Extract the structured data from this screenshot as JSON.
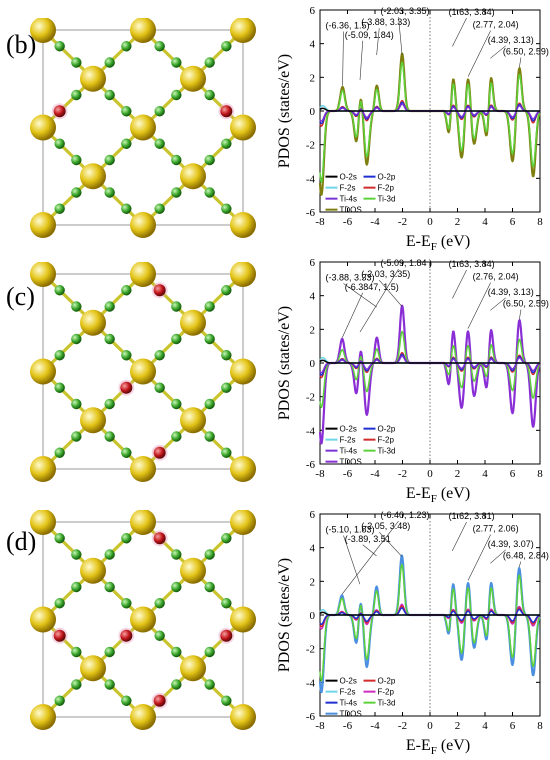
{
  "colors": {
    "ti_atom": "#e3c417",
    "o_atom": "#c0141a",
    "f_atom": "#3aa52b",
    "bond": "#c9c32d",
    "cell": "#999999"
  },
  "structures": [
    {
      "letter": "(b)",
      "o_sites": [
        [
          1,
          4
        ],
        [
          3,
          0
        ],
        [
          4,
          5
        ],
        [
          2,
          1
        ],
        [
          5,
          2
        ]
      ]
    },
    {
      "letter": "(c)",
      "o_sites": [
        [
          2,
          3
        ],
        [
          3,
          2
        ],
        [
          4,
          1
        ],
        [
          1,
          4
        ],
        [
          0,
          3
        ]
      ]
    },
    {
      "letter": "(d)",
      "o_sites": [
        [
          0,
          5
        ],
        [
          5,
          0
        ],
        [
          3,
          2
        ],
        [
          2,
          3
        ]
      ]
    }
  ],
  "chart_data": [
    {
      "type": "line",
      "panel": "(b)",
      "xlabel": "E-E_F (eV)",
      "ylabel": "PDOS (states/eV)",
      "xlim": [
        -8,
        8
      ],
      "ylim": [
        -6,
        6
      ],
      "xticks": [
        -8,
        -6,
        -4,
        -2,
        0,
        2,
        4,
        6,
        8
      ],
      "yticks": [
        -6,
        -4,
        -2,
        0,
        2,
        4,
        6
      ],
      "legend_position": "lower-left",
      "legend_columns": 2,
      "series": [
        {
          "name": "O-2s",
          "color": "#000000",
          "scale": 0.02
        },
        {
          "name": "O-2p",
          "color": "#1f2fd1",
          "scale": 0.15
        },
        {
          "name": "F-2s",
          "color": "#6cd6e8",
          "scale": 0.04
        },
        {
          "name": "F-2p",
          "color": "#d12b2b",
          "scale": 0.18
        },
        {
          "name": "Ti-4s",
          "color": "#7a33d6",
          "scale": 0.12
        },
        {
          "name": "Ti-3d",
          "color": "#5cd13a",
          "scale": 0.85
        },
        {
          "name": "TDOS",
          "color": "#7f7f10",
          "scale": 1.0
        }
      ],
      "peaks_up": [
        [
          -6.36,
          1.5
        ],
        [
          -5.09,
          1.84
        ],
        [
          -3.88,
          3.33
        ],
        [
          -2.03,
          3.35
        ],
        [
          1.63,
          3.84
        ],
        [
          2.77,
          2.04
        ],
        [
          4.39,
          3.13
        ],
        [
          6.5,
          2.59
        ]
      ],
      "peaks_down": [
        [
          -7.9,
          -5.0
        ],
        [
          -5.3,
          -2.4
        ],
        [
          -4.6,
          -3.2
        ],
        [
          -3.9,
          -1.8
        ],
        [
          1.5,
          -3.0
        ],
        [
          2.3,
          -2.8
        ],
        [
          3.2,
          -2.0
        ],
        [
          4.2,
          -2.4
        ],
        [
          6.0,
          -3.0
        ],
        [
          7.5,
          -3.9
        ]
      ],
      "annotations": [
        {
          "label": "(-6.36, 1.5)",
          "x": -6.36,
          "y": 1.5
        },
        {
          "label": "(-5.09, 1.84)",
          "x": -5.09,
          "y": 1.84
        },
        {
          "label": "(-3.88, 3.33)",
          "x": -3.88,
          "y": 3.33
        },
        {
          "label": "(-2.03, 3.35)",
          "x": -2.03,
          "y": 3.35
        },
        {
          "label": "(1.63, 3.84)",
          "x": 1.63,
          "y": 3.84
        },
        {
          "label": "(2.77, 2.04)",
          "x": 2.77,
          "y": 2.04
        },
        {
          "label": "(4.39, 3.13)",
          "x": 4.39,
          "y": 3.13
        },
        {
          "label": "(6.50, 2.59)",
          "x": 6.5,
          "y": 2.59
        }
      ]
    },
    {
      "type": "line",
      "panel": "(c)",
      "xlabel": "E-E_F (eV)",
      "ylabel": "PDOS (states/eV)",
      "xlim": [
        -8,
        8
      ],
      "ylim": [
        -6,
        6
      ],
      "xticks": [
        -8,
        -6,
        -4,
        -2,
        0,
        2,
        4,
        6,
        8
      ],
      "yticks": [
        -6,
        -4,
        -2,
        0,
        2,
        4,
        6
      ],
      "legend_position": "lower-left",
      "legend_columns": 2,
      "series": [
        {
          "name": "O-2s",
          "color": "#000000",
          "scale": 0.02
        },
        {
          "name": "O-2p",
          "color": "#1f2fd1",
          "scale": 0.15
        },
        {
          "name": "F-2s",
          "color": "#6cd6e8",
          "scale": 0.04
        },
        {
          "name": "F-2p",
          "color": "#d12b2b",
          "scale": 0.18
        },
        {
          "name": "Ti-4s",
          "color": "#7a33d6",
          "scale": 0.12
        },
        {
          "name": "Ti-3d",
          "color": "#5cd13a",
          "scale": 0.55
        },
        {
          "name": "TDOS",
          "color": "#8a2fd6",
          "scale": 1.0
        }
      ],
      "peaks_up": [
        [
          -6.3847,
          1.5
        ],
        [
          -5.09,
          1.84
        ],
        [
          -3.88,
          3.33
        ],
        [
          -2.03,
          3.35
        ],
        [
          1.63,
          3.84
        ],
        [
          2.76,
          2.04
        ],
        [
          4.39,
          3.13
        ],
        [
          6.5,
          2.59
        ]
      ],
      "peaks_down": [
        [
          -7.9,
          -4.8
        ],
        [
          -5.3,
          -2.4
        ],
        [
          -4.6,
          -3.1
        ],
        [
          -3.9,
          -1.8
        ],
        [
          1.5,
          -3.0
        ],
        [
          2.3,
          -2.7
        ],
        [
          3.2,
          -2.0
        ],
        [
          4.2,
          -2.4
        ],
        [
          6.0,
          -3.0
        ],
        [
          7.5,
          -3.8
        ]
      ],
      "annotations": [
        {
          "label": "(-3.88, 3.33)",
          "x": -3.88,
          "y": 3.33
        },
        {
          "label": "(-6.3847, 1.5)",
          "x": -6.3847,
          "y": 1.5
        },
        {
          "label": "(-2.03, 3.35)",
          "x": -2.03,
          "y": 3.35
        },
        {
          "label": "(-5.09, 1.84 )",
          "x": -5.09,
          "y": 1.84
        },
        {
          "label": "(1.63, 3.84)",
          "x": 1.63,
          "y": 3.84
        },
        {
          "label": "(2.76, 2.04)",
          "x": 2.76,
          "y": 2.04
        },
        {
          "label": "(4.39, 3.13)",
          "x": 4.39,
          "y": 3.13
        },
        {
          "label": "(6.50, 2.59)",
          "x": 6.5,
          "y": 2.59
        }
      ]
    },
    {
      "type": "line",
      "panel": "(d)",
      "xlabel": "E-E_F (eV)",
      "ylabel": "PDOS (states/eV)",
      "xlim": [
        -8,
        8
      ],
      "ylim": [
        -6,
        6
      ],
      "xticks": [
        -8,
        -6,
        -4,
        -2,
        0,
        2,
        4,
        6,
        8
      ],
      "yticks": [
        -6,
        -4,
        -2,
        0,
        2,
        4,
        6
      ],
      "legend_position": "lower-left",
      "legend_columns": 2,
      "series": [
        {
          "name": "O-2s",
          "color": "#000000",
          "scale": 0.02
        },
        {
          "name": "O-2p",
          "color": "#d12b2b",
          "scale": 0.15
        },
        {
          "name": "F-2s",
          "color": "#6cd6e8",
          "scale": 0.04
        },
        {
          "name": "F-2p",
          "color": "#d12bc0",
          "scale": 0.18
        },
        {
          "name": "Ti-4s",
          "color": "#1f2fd1",
          "scale": 0.12
        },
        {
          "name": "Ti-3d",
          "color": "#5cd13a",
          "scale": 0.85
        },
        {
          "name": "TDOS",
          "color": "#4a8fe0",
          "scale": 1.0
        }
      ],
      "peaks_up": [
        [
          -6.4,
          1.23
        ],
        [
          -5.1,
          1.83
        ],
        [
          -3.89,
          3.51
        ],
        [
          -2.05,
          3.48
        ],
        [
          1.62,
          3.81
        ],
        [
          2.77,
          2.06
        ],
        [
          4.39,
          3.07
        ],
        [
          6.48,
          2.84
        ]
      ],
      "peaks_down": [
        [
          -7.9,
          -4.6
        ],
        [
          -5.3,
          -2.3
        ],
        [
          -4.6,
          -3.1
        ],
        [
          -3.9,
          -1.8
        ],
        [
          1.5,
          -2.9
        ],
        [
          2.3,
          -2.7
        ],
        [
          3.2,
          -2.0
        ],
        [
          4.2,
          -2.4
        ],
        [
          6.0,
          -3.0
        ],
        [
          7.5,
          -3.6
        ]
      ],
      "annotations": [
        {
          "label": "(-5.10, 1.83)",
          "x": -5.1,
          "y": 1.83
        },
        {
          "label": "(-3.89, 3.51",
          "x": -3.89,
          "y": 3.51
        },
        {
          "label": "(-2.05, 3.48)",
          "x": -2.05,
          "y": 3.48
        },
        {
          "label": "(-6.40, 1.23)",
          "x": -6.4,
          "y": 1.23
        },
        {
          "label": "(1.62, 3.81)",
          "x": 1.62,
          "y": 3.81
        },
        {
          "label": "(2.77, 2.06)",
          "x": 2.77,
          "y": 2.06
        },
        {
          "label": "(4.39, 3.07)",
          "x": 4.39,
          "y": 3.07
        },
        {
          "label": "(6.48, 2.84)",
          "x": 6.48,
          "y": 2.84
        }
      ]
    }
  ]
}
